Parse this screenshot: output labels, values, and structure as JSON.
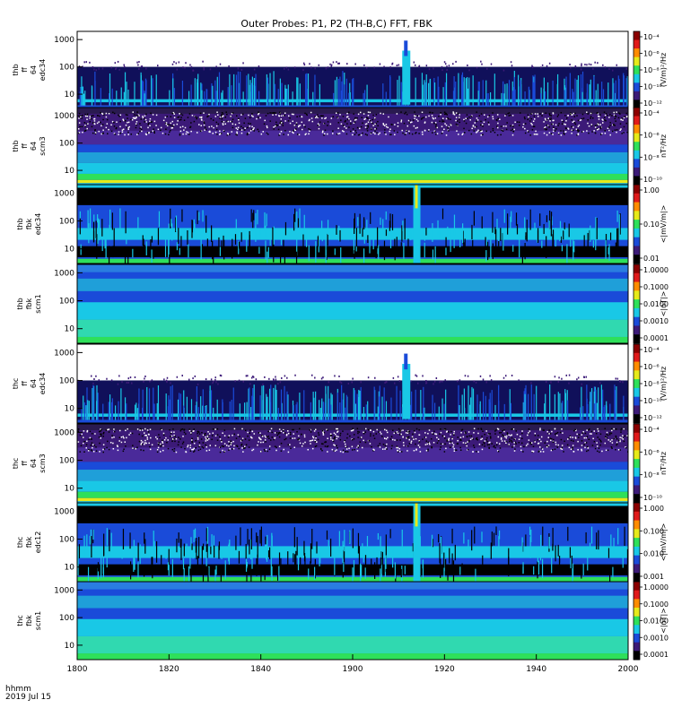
{
  "title": "Outer Probes: P1, P2 (TH-B,C) FFT, FBK",
  "footer": {
    "time_label": "hhmm",
    "date_label": "2019 Jul 15"
  },
  "colors": {
    "black": "#000000",
    "navy": "#10105a",
    "purple": "#3c1a78",
    "blue": "#1a4bd9",
    "cyan": "#19c8e6",
    "green": "#2ee05a",
    "yellow": "#e6ea1a",
    "red": "#e01a1a"
  },
  "chart_data": {
    "type": "heatmap",
    "xlabel": "hhmm",
    "x_ticks": [
      "1800",
      "1820",
      "1840",
      "1900",
      "1920",
      "1940",
      "2000"
    ],
    "x_range": [
      1800,
      2000
    ],
    "panels": [
      {
        "ylabel": [
          "thb",
          "ff",
          "64",
          "edc34"
        ],
        "yticks": [
          "1000",
          "100",
          "10"
        ],
        "colorbar": {
          "ticks": [
            "10⁻⁴",
            "10⁻⁶",
            "10⁻⁸",
            "10⁻¹⁰",
            "10⁻¹²"
          ],
          "label": "(V/m)²/Hz"
        }
      },
      {
        "ylabel": [
          "thb",
          "ff",
          "64",
          "scm3"
        ],
        "yticks": [
          "1000",
          "100",
          "10"
        ],
        "colorbar": {
          "ticks": [
            "10⁻⁴",
            "10⁻⁶",
            "10⁻⁸",
            "10⁻¹⁰"
          ],
          "label": "nT²/Hz"
        }
      },
      {
        "ylabel": [
          "thb",
          "fbk",
          "edc34"
        ],
        "yticks": [
          "1000",
          "100",
          "10"
        ],
        "colorbar": {
          "ticks": [
            "1.00",
            "0.10",
            "0.01"
          ],
          "label": "<|mV/m|>"
        }
      },
      {
        "ylabel": [
          "thb",
          "fbk",
          "scm1"
        ],
        "yticks": [
          "1000",
          "100",
          "10"
        ],
        "colorbar": {
          "ticks": [
            "1.0000",
            "0.1000",
            "0.0100",
            "0.0010",
            "0.0001"
          ],
          "label": "<|nT|>"
        }
      },
      {
        "ylabel": [
          "thc",
          "ff",
          "64",
          "edc34"
        ],
        "yticks": [
          "1000",
          "100",
          "10"
        ],
        "colorbar": {
          "ticks": [
            "10⁻⁴",
            "10⁻⁶",
            "10⁻⁸",
            "10⁻¹⁰",
            "10⁻¹²"
          ],
          "label": "(V/m)²/Hz"
        }
      },
      {
        "ylabel": [
          "thc",
          "ff",
          "64",
          "scm3"
        ],
        "yticks": [
          "1000",
          "100",
          "10"
        ],
        "colorbar": {
          "ticks": [
            "10⁻⁴",
            "10⁻⁶",
            "10⁻⁸",
            "10⁻¹⁰"
          ],
          "label": "nT²/Hz"
        }
      },
      {
        "ylabel": [
          "thc",
          "fbk",
          "edc12"
        ],
        "yticks": [
          "1000",
          "100",
          "10"
        ],
        "colorbar": {
          "ticks": [
            "1.000",
            "0.100",
            "0.010",
            "0.001"
          ],
          "label": "<|mV/m|>"
        }
      },
      {
        "ylabel": [
          "thc",
          "fbk",
          "scm1"
        ],
        "yticks": [
          "1000",
          "100",
          "10"
        ],
        "colorbar": {
          "ticks": [
            "1.0000",
            "0.1000",
            "0.0100",
            "0.0010",
            "0.0001"
          ],
          "label": "<|nT|>"
        }
      }
    ]
  }
}
